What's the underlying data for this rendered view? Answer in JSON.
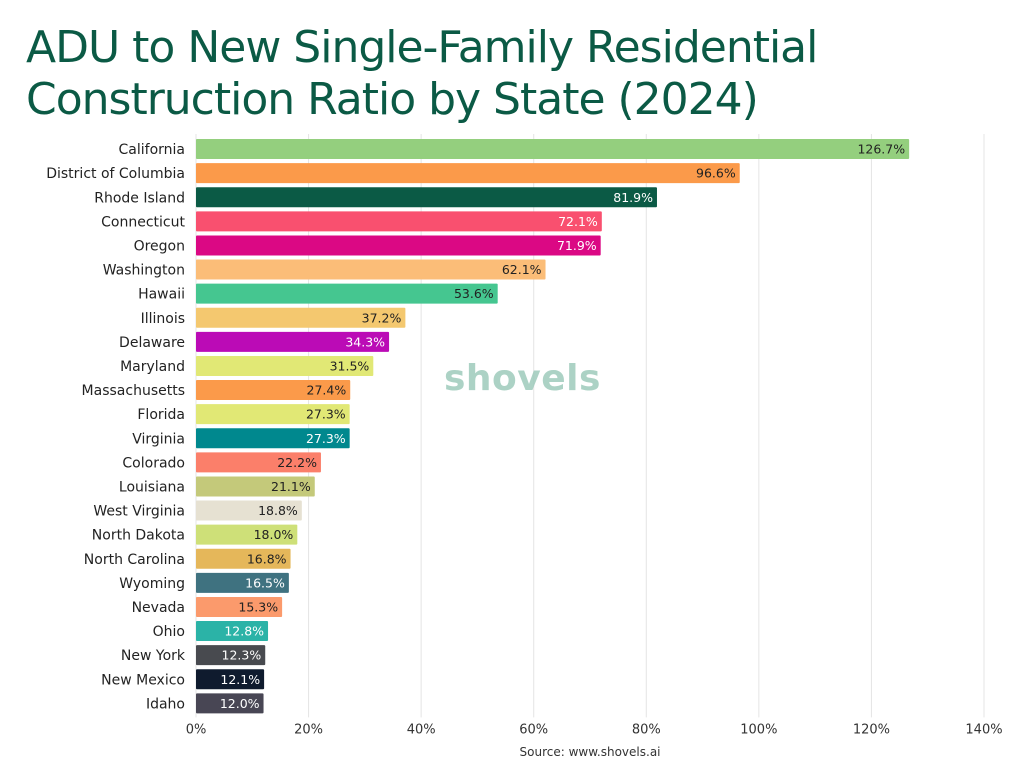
{
  "title_line1": "ADU to New Single-Family Residential",
  "title_line2": "Construction Ratio by State (2024)",
  "watermark": "shovels",
  "source": "Source: www.shovels.ai",
  "chart_data": {
    "type": "bar",
    "orientation": "horizontal",
    "title": "ADU to New Single-Family Residential Construction Ratio by State (2024)",
    "xlabel": "",
    "ylabel": "",
    "xlim": [
      0,
      140
    ],
    "xticks": [
      "0%",
      "20%",
      "40%",
      "60%",
      "80%",
      "100%",
      "120%",
      "140%"
    ],
    "grid": "vertical",
    "categories": [
      "California",
      "District of Columbia",
      "Rhode Island",
      "Connecticut",
      "Oregon",
      "Washington",
      "Hawaii",
      "Illinois",
      "Delaware",
      "Maryland",
      "Massachusetts",
      "Florida",
      "Virginia",
      "Colorado",
      "Louisiana",
      "West Virginia",
      "North Dakota",
      "North Carolina",
      "Wyoming",
      "Nevada",
      "Ohio",
      "New York",
      "New Mexico",
      "Idaho"
    ],
    "values": [
      126.7,
      96.6,
      81.9,
      72.1,
      71.9,
      62.1,
      53.6,
      37.2,
      34.3,
      31.5,
      27.4,
      27.3,
      27.3,
      22.2,
      21.1,
      18.8,
      18.0,
      16.8,
      16.5,
      15.3,
      12.8,
      12.3,
      12.1,
      12.0
    ],
    "labels": [
      "126.7%",
      "96.6%",
      "81.9%",
      "72.1%",
      "71.9%",
      "62.1%",
      "53.6%",
      "37.2%",
      "34.3%",
      "31.5%",
      "27.4%",
      "27.3%",
      "27.3%",
      "22.2%",
      "21.1%",
      "18.8%",
      "18.0%",
      "16.8%",
      "16.5%",
      "15.3%",
      "12.8%",
      "12.3%",
      "12.1%",
      "12.0%"
    ],
    "colors": [
      "#94cf7e",
      "#fb9a4a",
      "#0b5a45",
      "#f9506f",
      "#db0884",
      "#fbbd78",
      "#45c690",
      "#f4c86f",
      "#bb0bb6",
      "#e1e875",
      "#fb9a4a",
      "#e1e875",
      "#00888e",
      "#fb7f6a",
      "#c4c97a",
      "#e6e1d2",
      "#cee078",
      "#e5b75a",
      "#3f7280",
      "#fb9a6c",
      "#2bb3a7",
      "#484a4f",
      "#0f1b2e",
      "#484654"
    ],
    "label_colors": [
      "#222222",
      "#222222",
      "#ffffff",
      "#ffffff",
      "#ffffff",
      "#222222",
      "#222222",
      "#222222",
      "#ffffff",
      "#222222",
      "#222222",
      "#222222",
      "#ffffff",
      "#222222",
      "#222222",
      "#222222",
      "#222222",
      "#222222",
      "#ffffff",
      "#222222",
      "#ffffff",
      "#ffffff",
      "#ffffff",
      "#ffffff"
    ]
  }
}
